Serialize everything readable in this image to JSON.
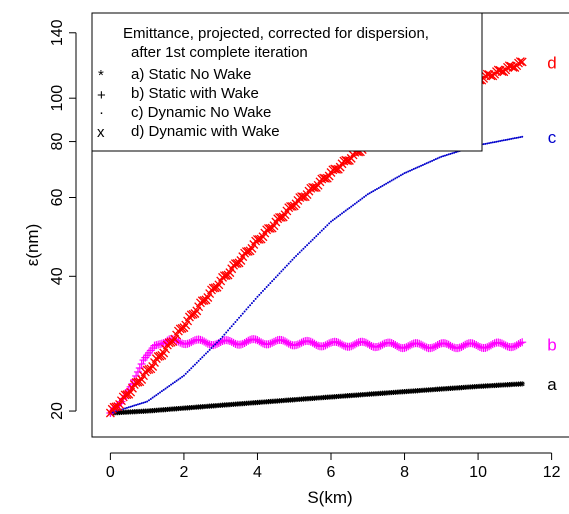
{
  "chart_data": {
    "type": "scatter",
    "xlabel": "S(km)",
    "ylabel": "ε(nm)",
    "xlim": [
      -0.5,
      12.5
    ],
    "ylim": [
      17.5,
      155
    ],
    "y_scale": "log",
    "x_ticks": [
      0,
      2,
      4,
      6,
      8,
      10,
      12
    ],
    "y_ticks": [
      20,
      40,
      60,
      80,
      100,
      140
    ],
    "x_tick_labels": [
      "0",
      "2",
      "4",
      "6",
      "8",
      "10",
      "12"
    ],
    "y_tick_labels": [
      "20",
      "40",
      "60",
      "80",
      "100",
      "140"
    ],
    "grid": false,
    "legend": {
      "position": "top-left",
      "title_line1": "Emittance, projected, corrected for dispersion,",
      "title_line2": "after 1st complete iteration",
      "entries": [
        {
          "marker": "*",
          "label": "a) Static No Wake",
          "color": "#000000"
        },
        {
          "marker": "+",
          "label": "b) Static with Wake",
          "color": "#ff00ff"
        },
        {
          "marker": "·",
          "label": "c) Dynamic No Wake",
          "color": "#000000"
        },
        {
          "marker": "x",
          "label": "d) Dynamic with Wake",
          "color": "#ff0000"
        }
      ]
    },
    "series": [
      {
        "label": "a",
        "marker": "*",
        "color": "#000000",
        "x": [
          0,
          1,
          2,
          3,
          4,
          5,
          6,
          7,
          8,
          9,
          10,
          11.2
        ],
        "y": [
          19.8,
          20.0,
          20.3,
          20.6,
          20.9,
          21.2,
          21.5,
          21.8,
          22.1,
          22.4,
          22.7,
          23.0
        ]
      },
      {
        "label": "b",
        "marker": "+",
        "color": "#ff00ff",
        "x": [
          0,
          0.3,
          0.6,
          0.9,
          1.2,
          1.6,
          2.0,
          3.0,
          4.0,
          5.0,
          6.0,
          7.0,
          8.0,
          9.0,
          10.0,
          11.2
        ],
        "y": [
          19.8,
          21.0,
          23.0,
          26.0,
          28.0,
          28.6,
          28.6,
          28.4,
          28.6,
          28.4,
          28.2,
          28.2,
          28.0,
          28.0,
          28.0,
          28.2
        ]
      },
      {
        "label": "c",
        "marker": "·",
        "color": "#0000cc",
        "x": [
          0,
          1,
          2,
          3,
          4,
          5,
          6,
          7,
          8,
          9,
          10,
          11.2
        ],
        "y": [
          19.8,
          21.0,
          24.0,
          29.0,
          36.0,
          44.0,
          53.0,
          61.0,
          68.0,
          74.0,
          78.5,
          82.0
        ]
      },
      {
        "label": "d",
        "marker": "x",
        "color": "#ff0000",
        "x": [
          0,
          0.5,
          1,
          1.5,
          2,
          2.5,
          3,
          4,
          5,
          6,
          7,
          8,
          9,
          10,
          11.2
        ],
        "y": [
          19.8,
          22.0,
          24.5,
          27.5,
          31.0,
          35.0,
          39.0,
          48.0,
          58.0,
          68.0,
          79.0,
          90.0,
          101.0,
          110.0,
          120.0
        ]
      }
    ],
    "end_labels": [
      {
        "text": "a",
        "series": "a",
        "color": "#000000"
      },
      {
        "text": "b",
        "series": "b",
        "color": "#ff00ff"
      },
      {
        "text": "c",
        "series": "c",
        "color": "#0000cc"
      },
      {
        "text": "d",
        "series": "d",
        "color": "#ff0000"
      }
    ]
  }
}
